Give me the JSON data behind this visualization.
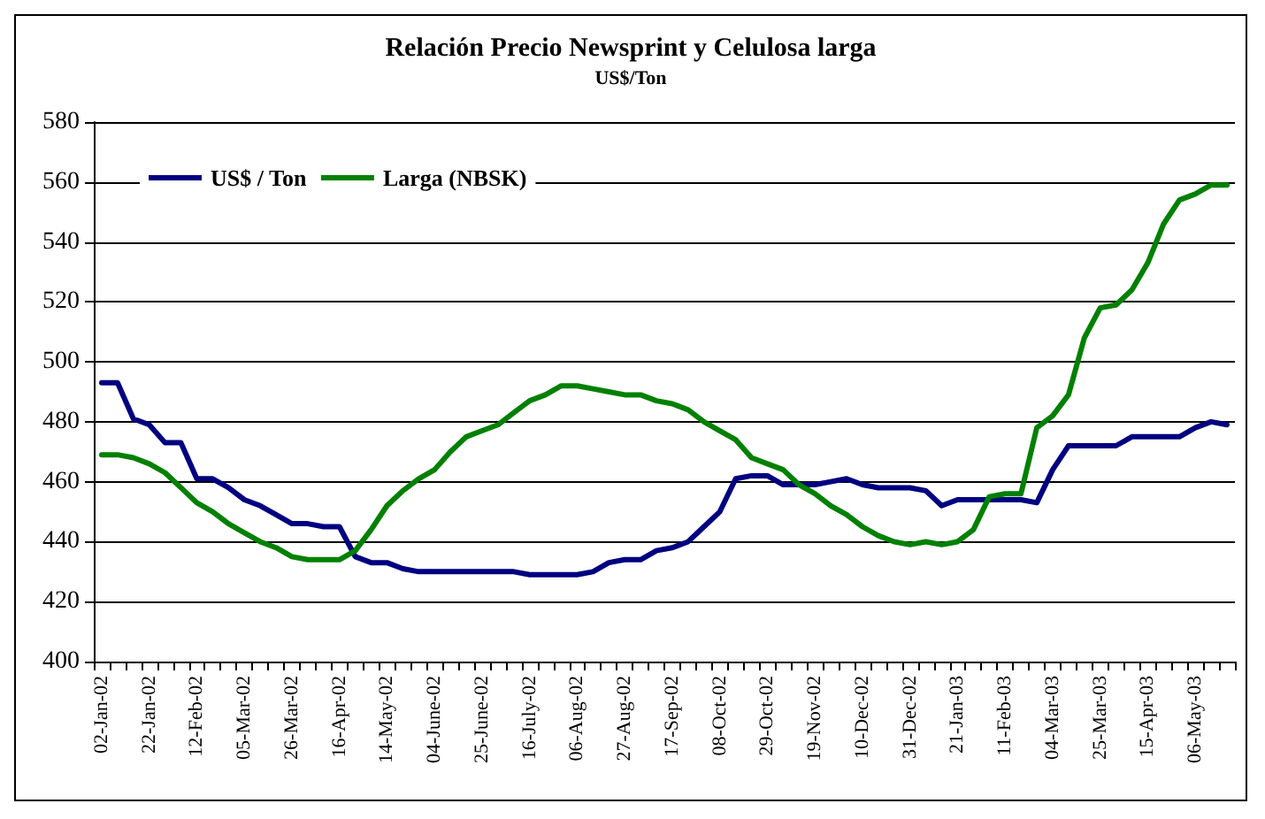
{
  "chart_data": {
    "type": "line",
    "title": "Relación Precio Newsprint y Celulosa larga",
    "subtitle": "US$/Ton",
    "categories": [
      "02-Jan-02",
      null,
      null,
      "22-Jan-02",
      null,
      null,
      "12-Feb-02",
      null,
      null,
      "05-Mar-02",
      null,
      null,
      "26-Mar-02",
      null,
      null,
      "16-Apr-02",
      null,
      null,
      "14-May-02",
      null,
      null,
      "04-June-02",
      null,
      null,
      "25-June-02",
      null,
      null,
      "16-July-02",
      null,
      null,
      "06-Aug-02",
      null,
      null,
      "27-Aug-02",
      null,
      null,
      "17-Sep-02",
      null,
      null,
      "08-Oct-02",
      null,
      null,
      "29-Oct-02",
      null,
      null,
      "19-Nov-02",
      null,
      null,
      "10-Dec-02",
      null,
      null,
      "31-Dec-02",
      null,
      null,
      "21-Jan-03",
      null,
      null,
      "11-Feb-03",
      null,
      null,
      "04-Mar-03",
      null,
      null,
      "25-Mar-03",
      null,
      null,
      "15-Apr-03",
      null,
      null,
      "06-May-03",
      null,
      null
    ],
    "series": [
      {
        "name": "US$ / Ton",
        "color": "#000080",
        "values": [
          493,
          493,
          481,
          479,
          473,
          473,
          461,
          461,
          458,
          454,
          452,
          449,
          446,
          446,
          445,
          445,
          435,
          433,
          433,
          431,
          430,
          430,
          430,
          430,
          430,
          430,
          430,
          429,
          429,
          429,
          429,
          430,
          433,
          434,
          434,
          437,
          438,
          440,
          445,
          450,
          461,
          462,
          462,
          459,
          459,
          459,
          460,
          461,
          459,
          458,
          458,
          458,
          457,
          452,
          454,
          454,
          454,
          454,
          454,
          453,
          464,
          472,
          472,
          472,
          472,
          475,
          475,
          475,
          475,
          478,
          480,
          479
        ]
      },
      {
        "name": "Larga (NBSK)",
        "color": "#008000",
        "values": [
          469,
          469,
          468,
          466,
          463,
          458,
          453,
          450,
          446,
          443,
          440,
          438,
          435,
          434,
          434,
          434,
          437,
          444,
          452,
          457,
          461,
          464,
          470,
          475,
          477,
          479,
          483,
          487,
          489,
          492,
          492,
          491,
          490,
          489,
          489,
          487,
          486,
          484,
          480,
          477,
          474,
          468,
          466,
          464,
          459,
          456,
          452,
          449,
          445,
          442,
          440,
          439,
          440,
          439,
          440,
          444,
          455,
          456,
          456,
          478,
          482,
          489,
          508,
          518,
          519,
          524,
          533,
          546,
          554,
          556,
          559,
          559
        ]
      }
    ],
    "ylim": [
      400,
      580
    ],
    "yticks": [
      400,
      420,
      440,
      460,
      480,
      500,
      520,
      540,
      560,
      580
    ],
    "grid": "y",
    "legend": "top left",
    "marker": "none",
    "line_style": "solid"
  }
}
